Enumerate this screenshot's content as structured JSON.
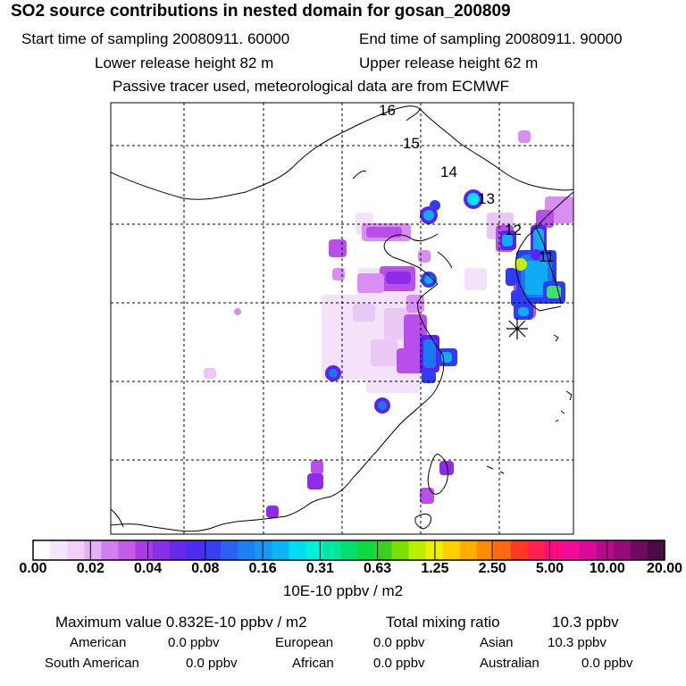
{
  "header": {
    "title": "SO2 source contributions in nested domain for gosan_200809",
    "start_label": "Start time of sampling 20080911. 60000",
    "end_label": "End time of sampling 20080911. 90000",
    "lower_label": "Lower release height   82 m",
    "upper_label": "Upper release height   62 m",
    "note": "Passive tracer used, meteorological data are from ECMWF"
  },
  "chart_data": {
    "type": "heatmap",
    "title": "SO2 source contributions in nested domain for gosan_200809",
    "units": "10E-10 ppbv / m2",
    "colorbar_ticks": [
      "0.00",
      "0.02",
      "0.04",
      "0.08",
      "0.16",
      "0.31",
      "0.63",
      "1.25",
      "2.50",
      "5.00",
      "10.00",
      "20.00"
    ],
    "colorbar_colors": [
      "#ffffff",
      "#f6e6fb",
      "#eed0f8",
      "#e2b2f5",
      "#d27ff0",
      "#c25de8",
      "#a93ae6",
      "#8a2fe8",
      "#6a28ea",
      "#4e2cef",
      "#3840f2",
      "#2a62f3",
      "#1e80f5",
      "#1498f6",
      "#0ab4f5",
      "#00ddf2",
      "#00f2d6",
      "#00e8a0",
      "#00e070",
      "#10d840",
      "#3ad020",
      "#7ae000",
      "#b8f000",
      "#eef000",
      "#ffd000",
      "#ffae00",
      "#ff8c00",
      "#ff6a10",
      "#ff3a20",
      "#ff2050",
      "#ff0a80",
      "#f20a98",
      "#d80a98",
      "#b80a8c",
      "#960a7a",
      "#6e0a60",
      "#4a0a48"
    ],
    "day_markers": [
      "16",
      "15",
      "14",
      "13",
      "12",
      "11"
    ],
    "receptor": "gosan"
  },
  "stats": {
    "max_label": "Maximum value  0.832E-10 ppbv / m2",
    "total_label": "Total mixing ratio",
    "total_value": "10.3 ppbv",
    "american_label": "American",
    "american_value": "0.0 ppbv",
    "european_label": "European",
    "european_value": "0.0 ppbv",
    "asian_label": "Asian",
    "asian_value": "10.3 ppbv",
    "south_american_label": "South American",
    "south_american_value": "0.0 ppbv",
    "african_label": "African",
    "african_value": "0.0 ppbv",
    "australian_label": "Australian",
    "australian_value": "0.0 ppbv"
  }
}
